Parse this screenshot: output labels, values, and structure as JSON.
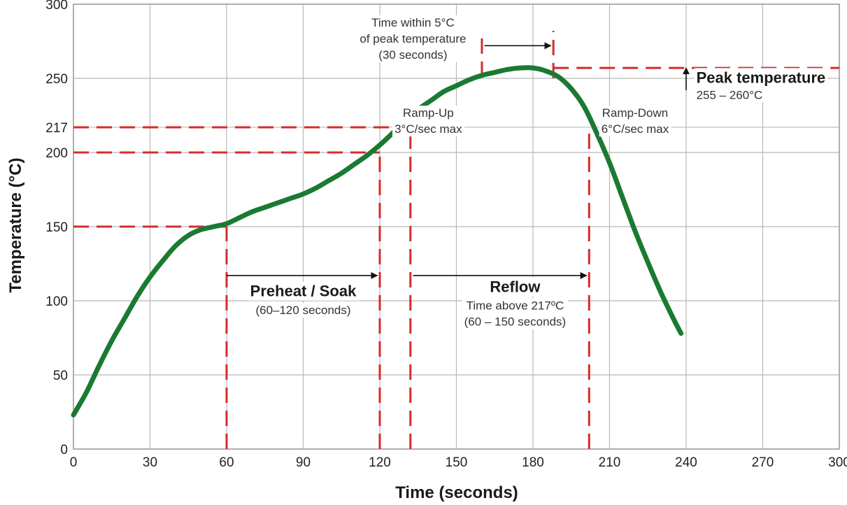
{
  "chart_data": {
    "type": "line",
    "xlabel": "Time (seconds)",
    "ylabel": "Temperature (°C)",
    "xlim": [
      0,
      300
    ],
    "ylim": [
      0,
      300
    ],
    "x_ticks": [
      0,
      30,
      60,
      90,
      120,
      150,
      180,
      210,
      240,
      270,
      300
    ],
    "y_ticks": [
      0,
      50,
      100,
      150,
      200,
      217,
      250,
      300
    ],
    "grid": true,
    "series": [
      {
        "color": "#1a7a32",
        "points": [
          [
            0,
            23
          ],
          [
            5,
            38
          ],
          [
            10,
            56
          ],
          [
            15,
            73
          ],
          [
            20,
            88
          ],
          [
            25,
            103
          ],
          [
            30,
            116
          ],
          [
            35,
            127
          ],
          [
            40,
            137
          ],
          [
            45,
            144
          ],
          [
            50,
            148
          ],
          [
            55,
            150
          ],
          [
            60,
            152
          ],
          [
            65,
            156
          ],
          [
            70,
            160
          ],
          [
            75,
            163
          ],
          [
            80,
            166
          ],
          [
            85,
            169
          ],
          [
            90,
            172
          ],
          [
            95,
            176
          ],
          [
            100,
            181
          ],
          [
            105,
            186
          ],
          [
            110,
            192
          ],
          [
            115,
            198
          ],
          [
            120,
            205
          ],
          [
            125,
            213
          ],
          [
            130,
            221
          ],
          [
            135,
            229
          ],
          [
            140,
            235
          ],
          [
            145,
            241
          ],
          [
            150,
            245
          ],
          [
            155,
            249
          ],
          [
            160,
            252
          ],
          [
            165,
            254
          ],
          [
            170,
            256
          ],
          [
            175,
            257
          ],
          [
            180,
            257
          ],
          [
            185,
            255
          ],
          [
            190,
            251
          ],
          [
            195,
            243
          ],
          [
            200,
            231
          ],
          [
            205,
            213
          ],
          [
            210,
            193
          ],
          [
            215,
            170
          ],
          [
            220,
            147
          ],
          [
            225,
            126
          ],
          [
            230,
            106
          ],
          [
            235,
            88
          ],
          [
            238,
            78
          ]
        ]
      }
    ],
    "reference_lines": {
      "horizontal": [
        {
          "y": 150,
          "x_from": 0,
          "x_to": 60
        },
        {
          "y": 200,
          "x_from": 0,
          "x_to": 120
        },
        {
          "y": 217,
          "x_from": 0,
          "x_to": 132
        },
        {
          "y": 257,
          "x_from": 188,
          "x_to": 300
        }
      ],
      "vertical": [
        {
          "x": 60,
          "y_from": 0,
          "y_to": 150
        },
        {
          "x": 120,
          "y_from": 0,
          "y_to": 200
        },
        {
          "x": 132,
          "y_from": 0,
          "y_to": 217
        },
        {
          "x": 160,
          "y_from": 251,
          "y_to": 282
        },
        {
          "x": 188,
          "y_from": 250,
          "y_to": 282
        },
        {
          "x": 202,
          "y_from": 0,
          "y_to": 217
        }
      ],
      "color": "#d62b2b"
    },
    "arrows": [
      {
        "from": [
          60,
          117
        ],
        "to": [
          119,
          117
        ]
      },
      {
        "from": [
          133,
          117
        ],
        "to": [
          201,
          117
        ]
      },
      {
        "from": [
          161,
          272
        ],
        "to": [
          187,
          272
        ]
      },
      {
        "from": [
          240,
          242
        ],
        "to": [
          240,
          257
        ]
      }
    ],
    "annotations": [
      {
        "lines": [
          "Time within 5°C",
          "of peak temperature",
          "(30 seconds)"
        ],
        "x": 133,
        "y": 285,
        "align": "middle",
        "weight": "normal"
      },
      {
        "lines": [
          "Peak temperature"
        ],
        "x": 244,
        "y": 247,
        "align": "start",
        "weight": "bold"
      },
      {
        "lines": [
          "255 – 260°C"
        ],
        "x": 244,
        "y": 236,
        "align": "start",
        "weight": "normal"
      },
      {
        "lines": [
          "Ramp-Up",
          "3°C/sec max"
        ],
        "x": 139,
        "y": 224,
        "align": "middle",
        "weight": "normal"
      },
      {
        "lines": [
          "Ramp-Down",
          "6°C/sec max"
        ],
        "x": 220,
        "y": 224,
        "align": "middle",
        "weight": "normal"
      },
      {
        "lines": [
          "Preheat / Soak"
        ],
        "x": 90,
        "y": 103,
        "align": "middle",
        "weight": "bold"
      },
      {
        "lines": [
          "(60–120 seconds)"
        ],
        "x": 90,
        "y": 91,
        "align": "middle",
        "weight": "normal"
      },
      {
        "lines": [
          "Reflow"
        ],
        "x": 173,
        "y": 106,
        "align": "middle",
        "weight": "bold"
      },
      {
        "lines": [
          "Time above 217ºC",
          "(60 – 150 seconds)"
        ],
        "x": 173,
        "y": 94,
        "align": "middle",
        "weight": "normal"
      }
    ]
  }
}
